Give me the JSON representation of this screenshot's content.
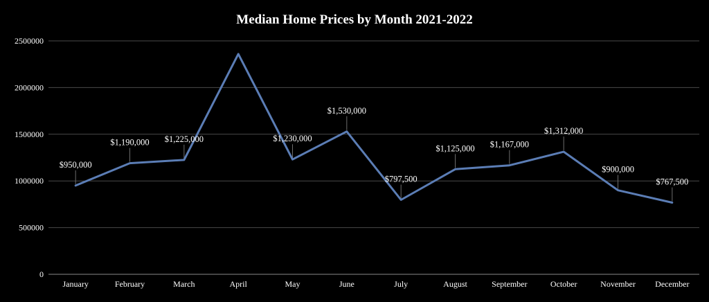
{
  "chart_data": {
    "type": "line",
    "title": "Median Home Prices by Month 2021-2022",
    "xlabel": "",
    "ylabel": "",
    "categories": [
      "January",
      "February",
      "March",
      "April",
      "May",
      "June",
      "July",
      "August",
      "September",
      "October",
      "November",
      "December"
    ],
    "series": [
      {
        "values": [
          950000,
          1190000,
          1225000,
          2360000,
          1230000,
          1530000,
          797500,
          1125000,
          1167000,
          1312000,
          900000,
          767500
        ],
        "data_labels": [
          "$950,000",
          "$1,190,000",
          "$1,225,000",
          "",
          "$1,230,000",
          "$1,530,000",
          "$797,500",
          "$1,125,000",
          "$1,167,000",
          "$1,312,000",
          "$900,000",
          "$767,500"
        ],
        "color": "#5b7db5"
      }
    ],
    "y_ticks": [
      "0",
      "500000",
      "1000000",
      "1500000",
      "2000000",
      "2500000"
    ],
    "ylim": [
      0,
      2500000
    ],
    "grid": true,
    "legend": "none",
    "colors": {
      "background": "#000000",
      "text": "#ffffff",
      "gridline": "#4a4a4a"
    }
  }
}
